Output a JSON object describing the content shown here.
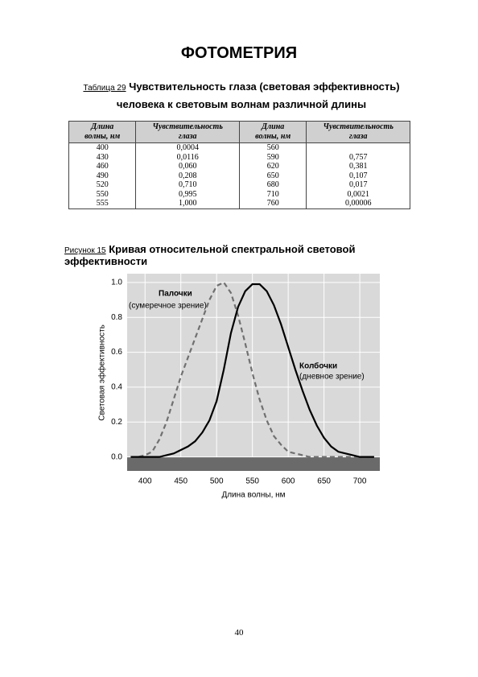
{
  "header": {
    "title": "ФОТОМЕТРИЯ"
  },
  "table_caption": {
    "label": "Таблица 29",
    "text": "Чувствительность глаза (световая эффективность) человека к световым волнам различной длины"
  },
  "table": {
    "header": [
      "Длина волны, нм",
      "Чувствительность глаза",
      "Длина волны, нм",
      "Чувствительность глаза"
    ],
    "rows": [
      [
        "400",
        "0,0004",
        "560",
        null
      ],
      [
        "430",
        "0,0116",
        "590",
        "0,757"
      ],
      [
        "460",
        "0,060",
        "620",
        "0,381"
      ],
      [
        "490",
        "0,208",
        "650",
        "0,107"
      ],
      [
        "520",
        "0,710",
        "680",
        "0,017"
      ],
      [
        "550",
        "0,995",
        "710",
        "0,0021"
      ],
      [
        "555",
        "1,000",
        "760",
        "0,00006"
      ]
    ]
  },
  "figure_caption": {
    "label": "Рисунок 15",
    "text": "Кривая относительной спектральной световой эффективности"
  },
  "chart_data": {
    "type": "line",
    "x_label": "Длина волны, нм",
    "y_label": "Световая эффективность",
    "x": [
      380,
      390,
      400,
      410,
      420,
      430,
      440,
      450,
      460,
      470,
      480,
      490,
      500,
      510,
      520,
      530,
      540,
      550,
      560,
      570,
      580,
      590,
      600,
      610,
      620,
      630,
      640,
      650,
      660,
      670,
      680,
      690,
      700,
      710,
      720
    ],
    "series": [
      {
        "name": "Палочки",
        "color": "#707070",
        "dashed": true,
        "values": [
          0,
          0,
          0.01,
          0.03,
          0.1,
          0.2,
          0.33,
          0.46,
          0.57,
          0.68,
          0.79,
          0.9,
          0.98,
          1.0,
          0.94,
          0.81,
          0.65,
          0.48,
          0.33,
          0.21,
          0.12,
          0.07,
          0.03,
          0.02,
          0.01,
          0,
          0,
          0,
          0,
          0,
          0,
          0,
          0,
          0,
          0
        ]
      },
      {
        "name": "Колбочки",
        "color": "#000000",
        "dashed": false,
        "values": [
          0,
          0,
          0,
          0,
          0,
          0.01,
          0.02,
          0.04,
          0.06,
          0.09,
          0.14,
          0.21,
          0.32,
          0.5,
          0.71,
          0.86,
          0.95,
          0.99,
          0.99,
          0.95,
          0.87,
          0.76,
          0.63,
          0.5,
          0.38,
          0.27,
          0.18,
          0.11,
          0.06,
          0.03,
          0.02,
          0.01,
          0,
          0,
          0
        ]
      }
    ],
    "annotations": [
      "(сумеречное зрение)",
      "(дневное зрение)"
    ],
    "xlim": [
      375,
      728
    ],
    "ylim": [
      -0.08,
      1.05
    ],
    "xticks": [
      400,
      450,
      500,
      550,
      600,
      650,
      700
    ],
    "yticks": [
      {
        "value": 0,
        "label": "0.0"
      },
      0.2,
      0.4,
      0.6,
      0.8,
      {
        "value": 1,
        "label": "1.0"
      }
    ],
    "grid": true
  },
  "page_number": "40"
}
